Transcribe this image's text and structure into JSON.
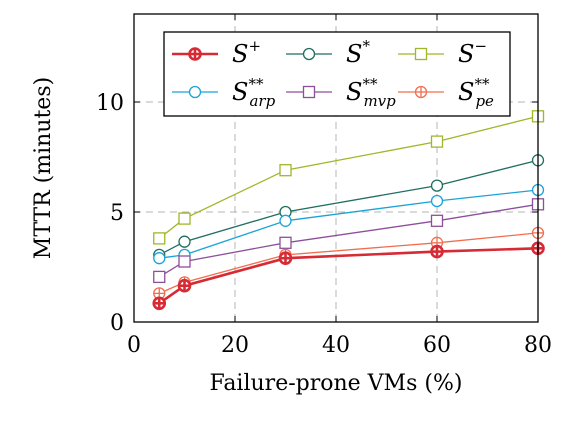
{
  "chart_data": {
    "type": "line",
    "xlabel": "Failure-prone VMs (%)",
    "ylabel": "MTTR (minutes)",
    "xlim": [
      0,
      80
    ],
    "ylim": [
      0,
      14
    ],
    "xticks": [
      0,
      20,
      40,
      60,
      80
    ],
    "yticks": [
      0,
      5,
      10
    ],
    "xtick_labels": [
      "0",
      "20",
      "40",
      "60",
      "80"
    ],
    "ytick_labels": [
      "0",
      "5",
      "10"
    ],
    "grid": "dashed",
    "legend_position": "top",
    "x": [
      5,
      10,
      30,
      60,
      80
    ],
    "series": [
      {
        "name": "S",
        "sup": "+",
        "sub": "",
        "color": "#d62a35",
        "marker": "circle-plus",
        "bold": true,
        "values": [
          0.85,
          1.65,
          2.9,
          3.2,
          3.35
        ]
      },
      {
        "name": "S",
        "sup": "*",
        "sub": "",
        "color": "#1f6e5f",
        "marker": "circle",
        "bold": false,
        "values": [
          3.05,
          3.65,
          5.0,
          6.2,
          7.35
        ]
      },
      {
        "name": "S",
        "sup": "−",
        "sub": "",
        "color": "#9fb728",
        "marker": "square",
        "bold": false,
        "values": [
          3.8,
          4.7,
          6.9,
          8.2,
          9.35
        ]
      },
      {
        "name": "S",
        "sup": "**",
        "sub": "arp",
        "color": "#1aa3d9",
        "marker": "circle",
        "bold": false,
        "values": [
          2.9,
          3.05,
          4.6,
          5.5,
          6.0
        ]
      },
      {
        "name": "S",
        "sup": "**",
        "sub": "mvp",
        "color": "#8e4f9a",
        "marker": "square",
        "bold": false,
        "values": [
          2.05,
          2.75,
          3.6,
          4.6,
          5.35
        ]
      },
      {
        "name": "S",
        "sup": "**",
        "sub": "pe",
        "color": "#f26d4f",
        "marker": "circle-plus",
        "bold": false,
        "values": [
          1.3,
          1.8,
          3.05,
          3.6,
          4.05
        ]
      }
    ]
  }
}
